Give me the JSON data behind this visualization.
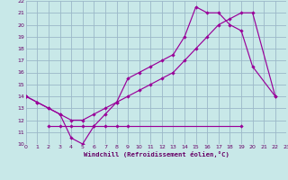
{
  "xlabel": "Windchill (Refroidissement éolien,°C)",
  "bg_color": "#c8e8e8",
  "grid_color": "#9bb8c8",
  "line_color": "#990099",
  "xlim": [
    0,
    23
  ],
  "ylim": [
    10,
    22
  ],
  "xticks": [
    0,
    1,
    2,
    3,
    4,
    5,
    6,
    7,
    8,
    9,
    10,
    11,
    12,
    13,
    14,
    15,
    16,
    17,
    18,
    19,
    20,
    21,
    22,
    23
  ],
  "yticks": [
    10,
    11,
    12,
    13,
    14,
    15,
    16,
    17,
    18,
    19,
    20,
    21,
    22
  ],
  "series": [
    {
      "x": [
        0,
        1,
        2,
        3,
        4,
        5,
        6,
        7,
        8,
        9,
        10,
        11,
        12,
        13,
        14,
        15,
        16,
        17,
        18,
        19,
        20,
        22
      ],
      "y": [
        14.0,
        13.5,
        13.0,
        12.5,
        10.5,
        10.0,
        11.5,
        12.5,
        13.5,
        15.5,
        16.0,
        16.5,
        17.0,
        17.5,
        19.0,
        21.5,
        21.0,
        21.0,
        20.0,
        19.5,
        16.5,
        14.0
      ]
    },
    {
      "x": [
        0,
        1,
        2,
        3,
        4,
        5,
        6,
        7,
        8,
        9,
        10,
        11,
        12,
        13,
        14,
        15,
        16,
        17,
        18,
        19,
        20,
        22
      ],
      "y": [
        14.0,
        13.5,
        13.0,
        12.5,
        12.0,
        12.0,
        12.5,
        13.0,
        13.5,
        14.0,
        14.5,
        15.0,
        15.5,
        16.0,
        17.0,
        18.0,
        19.0,
        20.0,
        20.5,
        21.0,
        21.0,
        14.0
      ]
    },
    {
      "x": [
        2,
        3,
        4,
        5,
        6,
        7,
        8,
        9,
        19
      ],
      "y": [
        11.5,
        11.5,
        11.5,
        11.5,
        11.5,
        11.5,
        11.5,
        11.5,
        11.5
      ]
    }
  ]
}
